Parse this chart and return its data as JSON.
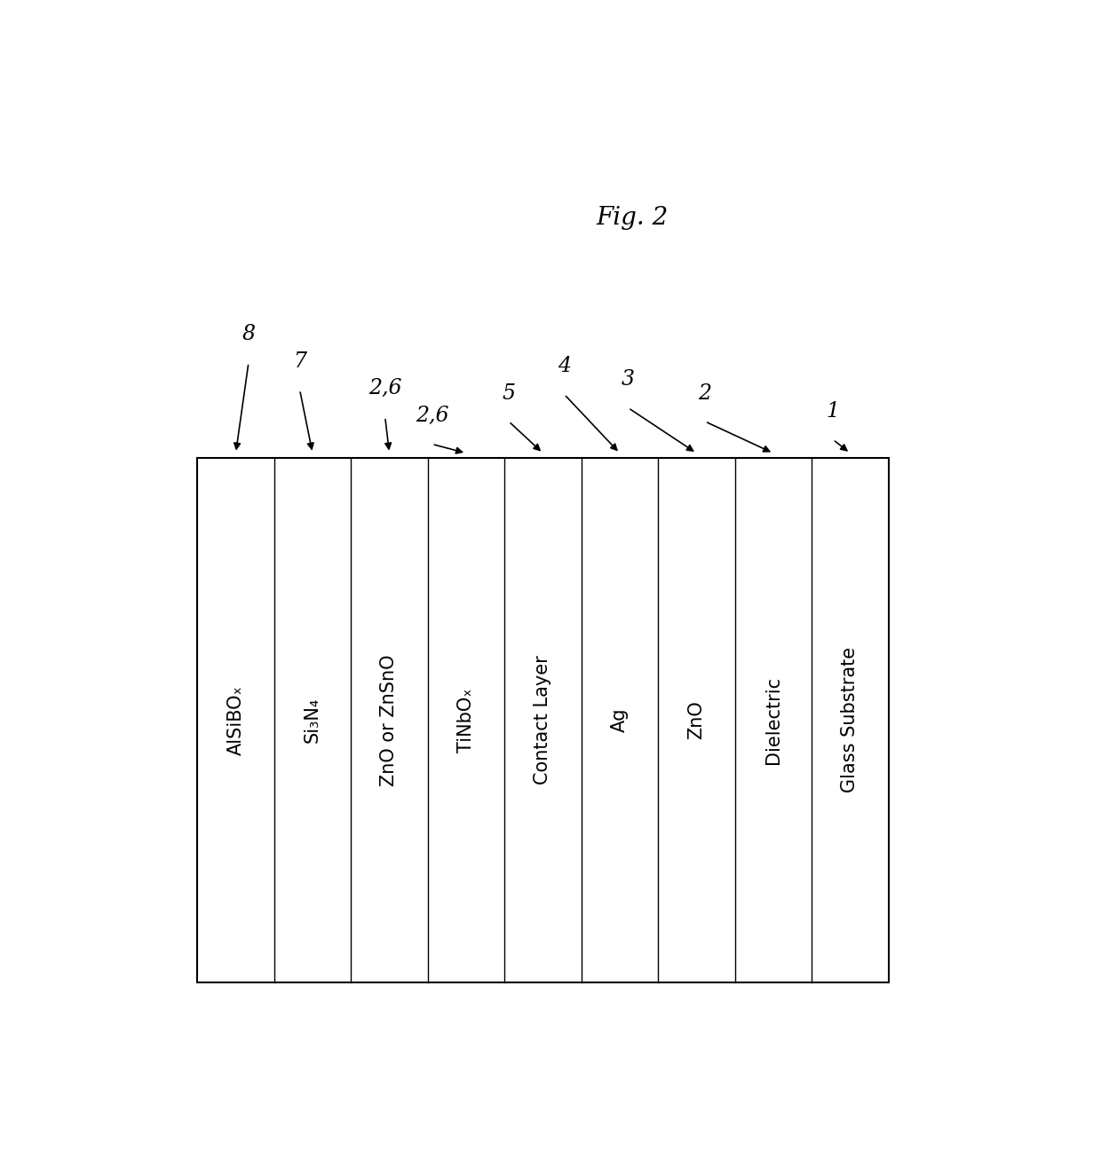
{
  "title": "Fig. 2",
  "layers": [
    {
      "label": "AlSiBOₓ",
      "number": "8"
    },
    {
      "label": "Si₃N₄",
      "number": "7"
    },
    {
      "label": "ZnO or ZnSnO",
      "number": "2,6"
    },
    {
      "label": "TiNbOₓ",
      "number": "2,6"
    },
    {
      "label": "Contact Layer",
      "number": "5"
    },
    {
      "label": "Ag",
      "number": "4"
    },
    {
      "label": "ZnO",
      "number": "3"
    },
    {
      "label": "Dielectric",
      "number": "2"
    },
    {
      "label": "Glass Substrate",
      "number": "1"
    }
  ],
  "bg_color": "#ffffff",
  "box_color": "#000000",
  "arrow_color": "#000000",
  "text_color": "#000000",
  "fig_width": 12.4,
  "fig_height": 13.24,
  "font_size": 15
}
